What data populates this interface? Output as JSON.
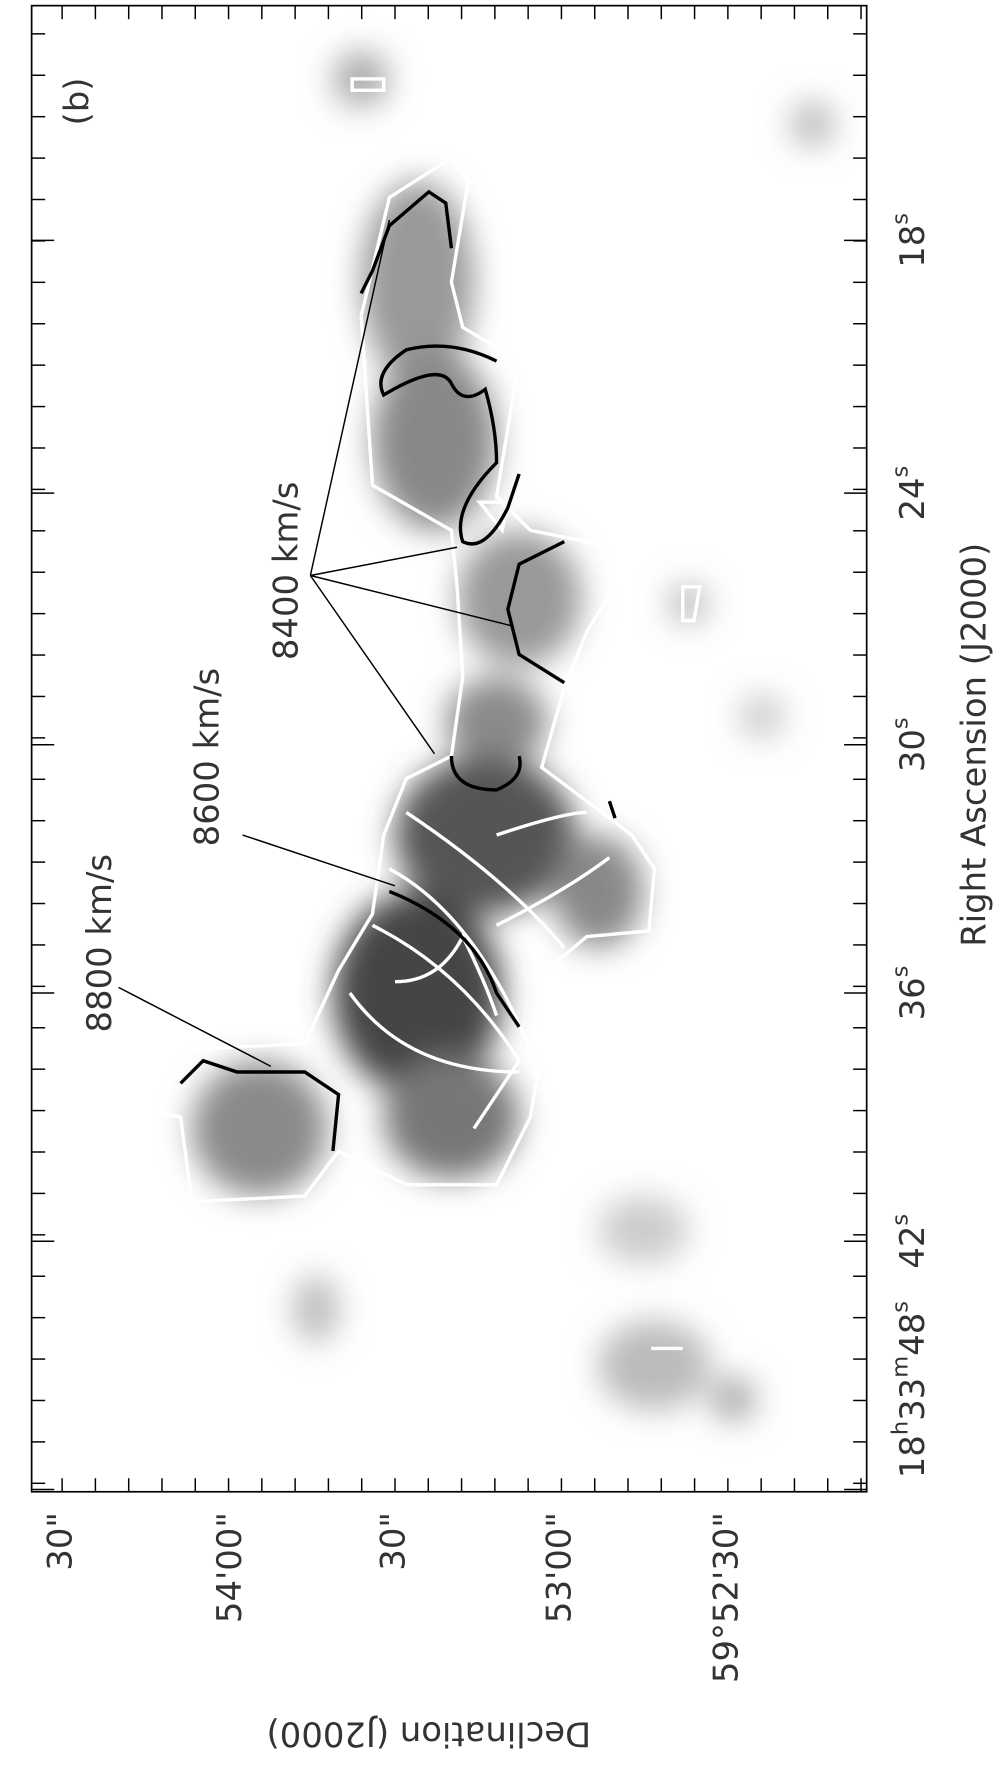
{
  "panel_label": "(b)",
  "x_axis": {
    "title": "Right Ascension (J2000)",
    "ticks": [
      [
        "18",
        "s"
      ],
      [
        "24",
        "s"
      ],
      [
        "30",
        "s"
      ],
      [
        "36",
        "s"
      ],
      [
        "42",
        "s"
      ],
      [
        "18",
        "h",
        "33",
        "m",
        "48",
        "s"
      ]
    ]
  },
  "y_axis": {
    "title": "Declination (J2000)",
    "ticks": [
      "30\"",
      "54'00\"",
      "30\"",
      "53'00\"",
      "59°52'30\""
    ]
  },
  "annotations": [
    "8800 km/s",
    "8600 km/s",
    "8400 km/s"
  ]
}
